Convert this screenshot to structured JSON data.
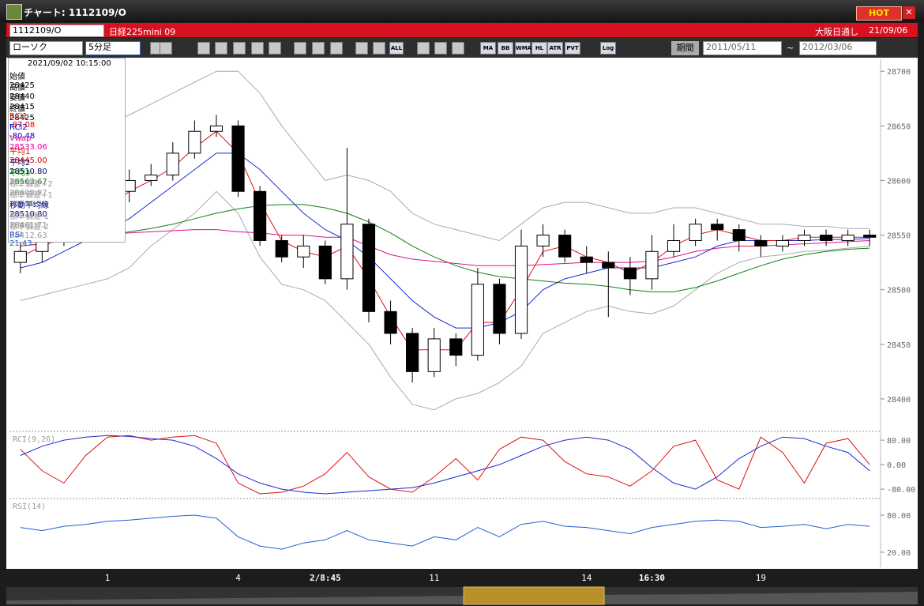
{
  "window": {
    "title": "チャート: 1112109/O",
    "hot": "HOT"
  },
  "header": {
    "symbol": "1112109/O",
    "name": "日経225mini 09",
    "session": "大阪日通し",
    "date": "21/09/06"
  },
  "toolbar": {
    "chart_type": "ローソク",
    "interval": "5分足",
    "icons": [
      "ALL",
      "MA",
      "BB",
      "WMA",
      "HL",
      "ATR",
      "PVT",
      "Log"
    ],
    "period_label": "期間",
    "from": "2011/05/11",
    "sep": "~",
    "to": "2012/03/06"
  },
  "info_panel": {
    "datetime": "2021/09/02  10:15:00",
    "rows": [
      {
        "label": "始値",
        "value": "28425",
        "color": "#000000"
      },
      {
        "label": "高値",
        "value": "28440",
        "color": "#000000"
      },
      {
        "label": "安値",
        "value": "28415",
        "color": "#000000"
      },
      {
        "label": "終値",
        "value": "28425",
        "color": "#000000"
      },
      {
        "label": "RCI1",
        "value": "-87.08",
        "color": "#e00000"
      },
      {
        "label": "RCI2",
        "value": "-80.48",
        "color": "#0000c0"
      },
      {
        "label": "Vwap",
        "value": "28533.06",
        "color": "#e000a0"
      },
      {
        "label": "平均1",
        "value": "28445.00",
        "color": "#e00000"
      },
      {
        "label": "平均2",
        "value": "28510.80",
        "color": "#000060"
      },
      {
        "label": "平均3",
        "value": "28563.67",
        "color": "#008000"
      },
      {
        "label": "標準偏差+2",
        "value": "28608.97",
        "color": "#999999"
      },
      {
        "label": "標準偏差+1",
        "value": "28559.89",
        "color": "#999999"
      },
      {
        "label": "移動平均線",
        "value": "28510.80",
        "color": "#000080"
      },
      {
        "label": "標準偏差-1",
        "value": "28461.71",
        "color": "#999999"
      },
      {
        "label": "標準偏差-2",
        "value": "28412.63",
        "color": "#999999"
      },
      {
        "label": "RSI",
        "value": "21.43",
        "color": "#2060d0"
      }
    ]
  },
  "chart_data": [
    {
      "type": "candlestick",
      "categories": [
        null,
        null,
        null,
        null,
        "1",
        null,
        null,
        null,
        null,
        null,
        "4",
        null,
        null,
        null,
        "2/8:45",
        null,
        null,
        null,
        null,
        "11",
        null,
        null,
        null,
        null,
        null,
        null,
        "14",
        null,
        null,
        "16:30",
        null,
        null,
        null,
        null,
        "19",
        null,
        null,
        null,
        null,
        null
      ],
      "open": [
        28525,
        28535,
        28550,
        28555,
        28575,
        28590,
        28600,
        28605,
        28625,
        28645,
        28650,
        28590,
        28545,
        28530,
        28540,
        28510,
        28560,
        28480,
        28460,
        28425,
        28455,
        28440,
        28505,
        28460,
        28540,
        28550,
        28530,
        28525,
        28520,
        28510,
        28535,
        28545,
        28560,
        28555,
        28545,
        28540,
        28545,
        28550,
        28545,
        28550
      ],
      "high": [
        28545,
        28560,
        28565,
        28585,
        28600,
        28610,
        28615,
        28635,
        28655,
        28660,
        28655,
        28595,
        28550,
        28550,
        28545,
        28630,
        28565,
        28490,
        28465,
        28465,
        28460,
        28520,
        28510,
        28555,
        28560,
        28555,
        28540,
        28535,
        28530,
        28550,
        28560,
        28565,
        28565,
        28560,
        28550,
        28550,
        28555,
        28555,
        28555,
        28555
      ],
      "low": [
        28515,
        28525,
        28540,
        28550,
        28565,
        28580,
        28595,
        28600,
        28620,
        28640,
        28585,
        28540,
        28525,
        28520,
        28505,
        28500,
        28470,
        28450,
        28415,
        28420,
        28430,
        28435,
        28450,
        28455,
        28530,
        28525,
        28515,
        28475,
        28495,
        28500,
        28530,
        28540,
        28545,
        28535,
        28530,
        28535,
        28540,
        28540,
        28540,
        28540
      ],
      "close": [
        28535,
        28550,
        28555,
        28575,
        28590,
        28600,
        28605,
        28625,
        28645,
        28650,
        28590,
        28545,
        28530,
        28540,
        28510,
        28560,
        28480,
        28460,
        28425,
        28455,
        28440,
        28505,
        28460,
        28540,
        28550,
        28530,
        28525,
        28520,
        28510,
        28535,
        28545,
        28560,
        28555,
        28545,
        28540,
        28545,
        28550,
        28545,
        28550,
        28548
      ],
      "series": [
        {
          "name": "標準偏差+2",
          "color": "#aaaaaa",
          "values": [
            28590,
            28605,
            28620,
            28635,
            28650,
            28660,
            28670,
            28680,
            28690,
            28700,
            28700,
            28680,
            28650,
            28625,
            28600,
            28605,
            28600,
            28590,
            28570,
            28560,
            28555,
            28550,
            28545,
            28560,
            28575,
            28580,
            28580,
            28575,
            28570,
            28570,
            28575,
            28575,
            28570,
            28565,
            28560,
            28560,
            28558,
            28558,
            28556,
            28556
          ]
        },
        {
          "name": "標準偏差-2",
          "color": "#aaaaaa",
          "values": [
            28490,
            28495,
            28500,
            28505,
            28510,
            28520,
            28540,
            28555,
            28570,
            28590,
            28570,
            28530,
            28505,
            28500,
            28490,
            28470,
            28450,
            28420,
            28395,
            28390,
            28400,
            28405,
            28415,
            28430,
            28460,
            28470,
            28480,
            28485,
            28480,
            28478,
            28485,
            28500,
            28515,
            28525,
            28530,
            28532,
            28535,
            28536,
            28538,
            28540
          ]
        },
        {
          "name": "平均3",
          "color": "#108010",
          "values": [
            28540,
            28542,
            28545,
            28548,
            28550,
            28553,
            28556,
            28560,
            28565,
            28570,
            28574,
            28577,
            28578,
            28578,
            28575,
            28570,
            28562,
            28552,
            28540,
            28530,
            28522,
            28516,
            28512,
            28510,
            28508,
            28506,
            28505,
            28503,
            28500,
            28498,
            28498,
            28502,
            28508,
            28515,
            28522,
            28528,
            28532,
            28535,
            28537,
            28538
          ]
        },
        {
          "name": "Vwap",
          "color": "#e0108a",
          "values": [
            28540,
            28542,
            28545,
            28548,
            28550,
            28552,
            28553,
            28554,
            28555,
            28555,
            28553,
            28552,
            28550,
            28550,
            28548,
            28548,
            28540,
            28532,
            28528,
            28526,
            28524,
            28522,
            28522,
            28522,
            28523,
            28524,
            28525,
            28525,
            28525,
            28526,
            28530,
            28535,
            28538,
            28540,
            28540,
            28541,
            28542,
            28543,
            28544,
            28545
          ]
        },
        {
          "name": "平均2",
          "color": "#1a2ad0",
          "values": [
            28520,
            28525,
            28535,
            28545,
            28555,
            28565,
            28580,
            28595,
            28610,
            28625,
            28625,
            28610,
            28590,
            28570,
            28555,
            28545,
            28530,
            28510,
            28490,
            28475,
            28465,
            28465,
            28470,
            28480,
            28500,
            28510,
            28515,
            28520,
            28520,
            28520,
            28525,
            28530,
            28540,
            28545,
            28545,
            28545,
            28545,
            28546,
            28546,
            28547
          ]
        },
        {
          "name": "平均1",
          "color": "#e01010",
          "values": [
            28530,
            28540,
            28548,
            28560,
            28575,
            28590,
            28600,
            28612,
            28630,
            28645,
            28625,
            28580,
            28545,
            28535,
            28530,
            28540,
            28510,
            28475,
            28445,
            28445,
            28445,
            28470,
            28470,
            28500,
            28535,
            28540,
            28530,
            28525,
            28515,
            28525,
            28540,
            28550,
            28555,
            28550,
            28545,
            28545,
            28548,
            28548,
            28548,
            28548
          ]
        }
      ],
      "ylim": [
        28371,
        28711
      ],
      "yticks": [
        28400,
        28450,
        28500,
        28550,
        28600,
        28650,
        28700
      ]
    },
    {
      "type": "line",
      "title": "RCI(9,26)",
      "series": [
        {
          "name": "RCI1",
          "color": "#e01010",
          "values": [
            50,
            -20,
            -60,
            30,
            90,
            95,
            80,
            90,
            95,
            70,
            -60,
            -95,
            -90,
            -70,
            -30,
            40,
            -40,
            -80,
            -90,
            -40,
            20,
            -50,
            50,
            90,
            80,
            10,
            -30,
            -40,
            -70,
            -20,
            60,
            80,
            -50,
            -80,
            90,
            40,
            -60,
            70,
            85,
            0
          ]
        },
        {
          "name": "RCI2",
          "color": "#1a2ad0",
          "values": [
            30,
            60,
            80,
            90,
            95,
            92,
            85,
            80,
            60,
            20,
            -30,
            -60,
            -80,
            -90,
            -95,
            -90,
            -85,
            -80,
            -75,
            -60,
            -40,
            -20,
            0,
            30,
            60,
            80,
            90,
            80,
            50,
            -10,
            -60,
            -80,
            -40,
            20,
            60,
            90,
            85,
            60,
            40,
            -20
          ]
        }
      ],
      "ylim": [
        -108,
        106
      ],
      "yticks": [
        {
          "value": -80,
          "label": "-80.00"
        },
        {
          "value": 0,
          "label": "0.00"
        },
        {
          "value": 80,
          "label": "80.00"
        }
      ]
    },
    {
      "type": "line",
      "title": "RSI(14)",
      "series": [
        {
          "name": "RSI",
          "color": "#2060d0",
          "values": [
            60,
            55,
            62,
            65,
            70,
            72,
            75,
            78,
            80,
            75,
            45,
            30,
            25,
            35,
            40,
            55,
            40,
            35,
            30,
            45,
            40,
            60,
            45,
            65,
            70,
            62,
            60,
            55,
            50,
            60,
            65,
            70,
            72,
            70,
            60,
            62,
            65,
            58,
            65,
            62
          ]
        }
      ],
      "ylim": [
        -4.3,
        105.5
      ],
      "yticks": [
        {
          "value": 20,
          "label": "20.00"
        },
        {
          "value": 80,
          "label": "80.00"
        }
      ]
    }
  ]
}
